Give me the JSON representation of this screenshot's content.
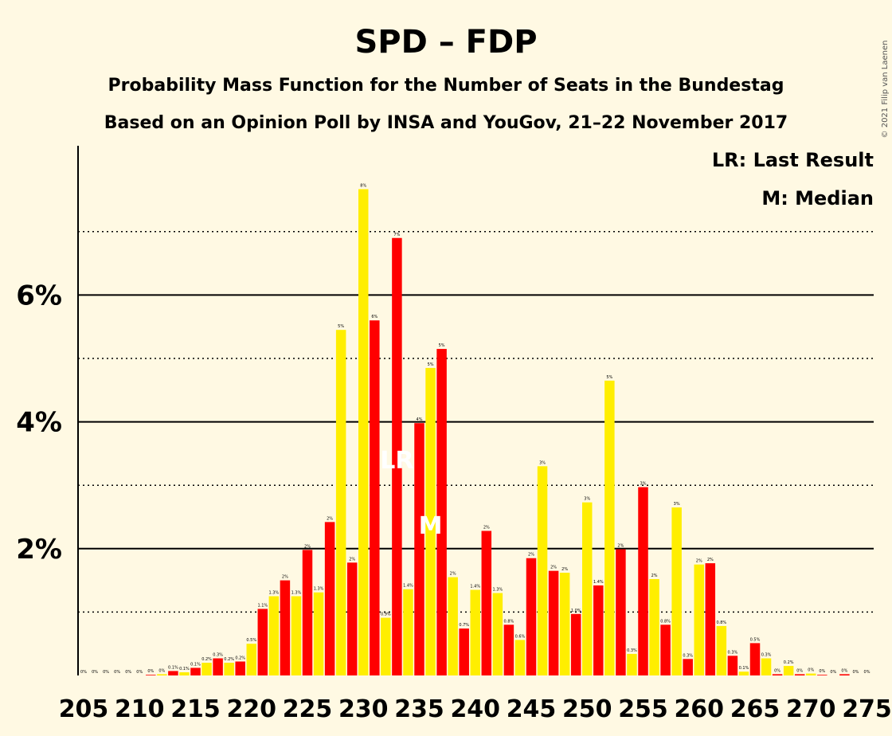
{
  "chart_data": {
    "type": "bar",
    "title": "SPD – FDP",
    "subtitle_lines": [
      "Probability Mass Function for the Number of Seats in the Bundestag",
      "Based on an Opinion Poll by INSA and YouGov, 21–22 November 2017"
    ],
    "legend": [
      "LR: Last Result",
      "M: Median"
    ],
    "legend_position": "top-right",
    "copyright": "© 2021 Filip van Laenen",
    "x_start": 205,
    "x_end": 275,
    "x_tick_values": [
      "205",
      "210",
      "215",
      "220",
      "225",
      "230",
      "235",
      "240",
      "245",
      "250",
      "255",
      "260",
      "265",
      "270",
      "275"
    ],
    "y_tick_labels": [
      {
        "value": 2,
        "label": "2%"
      },
      {
        "value": 4,
        "label": "4%"
      },
      {
        "value": 6,
        "label": "6%"
      }
    ],
    "y_dotted_lines": [
      1,
      3,
      5,
      7
    ],
    "ylim": [
      0,
      8.3
    ],
    "grid": "horizontal",
    "colors": {
      "odd": "#FF0000",
      "even": "#FFEE00",
      "background": "#FFF9E3",
      "marker": "#FFFFFF"
    },
    "last_result": {
      "x": 233,
      "label": "LR"
    },
    "median": {
      "x": 236,
      "label": "M"
    },
    "seats": [
      205,
      206,
      207,
      208,
      209,
      210,
      211,
      212,
      213,
      214,
      215,
      216,
      217,
      218,
      219,
      220,
      221,
      222,
      223,
      224,
      225,
      226,
      227,
      228,
      229,
      230,
      231,
      232,
      233,
      234,
      235,
      236,
      237,
      238,
      239,
      240,
      241,
      242,
      243,
      244,
      245,
      246,
      247,
      248,
      249,
      250,
      251,
      252,
      253,
      254,
      255,
      256,
      257,
      258,
      259,
      260,
      261,
      262,
      263,
      264,
      265,
      266,
      267,
      268,
      269,
      270,
      271,
      272,
      273,
      274,
      275
    ],
    "values": [
      0,
      0,
      0,
      0,
      0,
      0,
      0.01,
      0.02,
      0.07,
      0.05,
      0.12,
      0.2,
      0.27,
      0.2,
      0.22,
      0.5,
      1.05,
      1.25,
      1.5,
      1.25,
      1.98,
      1.31,
      2.42,
      5.45,
      1.78,
      7.67,
      5.6,
      0.91,
      6.9,
      1.36,
      3.98,
      4.85,
      5.15,
      1.55,
      0.74,
      1.35,
      2.28,
      1.3,
      0.8,
      0.56,
      1.85,
      3.3,
      1.65,
      1.62,
      0.97,
      2.73,
      1.42,
      4.65,
      1.99,
      0.34,
      2.97,
      1.52,
      0.8,
      2.65,
      0.26,
      1.75,
      1.77,
      0.78,
      0.31,
      0.06,
      0.51,
      0.27,
      0.02,
      0.15,
      0.02,
      0.03,
      0.01,
      0,
      0.02,
      0,
      0
    ],
    "data_labels": [
      "0%",
      "0%",
      "0%",
      "0%",
      "0%",
      "0%",
      "0%",
      "0%",
      "0.1%",
      "0.1%",
      "0.1%",
      "0.2%",
      "0.3%",
      "0.2%",
      "0.2%",
      "0.5%",
      "1.1%",
      "1.3%",
      "2%",
      "1.3%",
      "2%",
      "1.3%",
      "2%",
      "5%",
      "2%",
      "8%",
      "6%",
      "0.9%",
      "7%",
      "1.4%",
      "4%",
      "5%",
      "5%",
      "2%",
      "0.7%",
      "1.4%",
      "2%",
      "1.3%",
      "0.8%",
      "0.6%",
      "2%",
      "3%",
      "2%",
      "2%",
      "1.0%",
      "3%",
      "1.4%",
      "5%",
      "2%",
      "0.3%",
      "3%",
      "2%",
      "0.8%",
      "3%",
      "0.3%",
      "2%",
      "2%",
      "0.8%",
      "0.3%",
      "0.1%",
      "0.5%",
      "0.3%",
      "0%",
      "0.2%",
      "0%",
      "0%",
      "0%",
      "0%",
      "0%",
      "0%",
      "0%"
    ]
  }
}
